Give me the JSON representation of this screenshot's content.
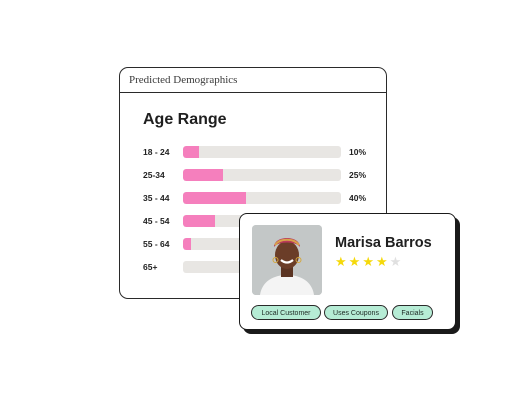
{
  "panel": {
    "header": "Predicted Demographics",
    "title": "Age Range",
    "rows": [
      {
        "label": "18 - 24",
        "fill": 0.1,
        "value": "10%"
      },
      {
        "label": "25-34",
        "fill": 0.25,
        "value": "25%"
      },
      {
        "label": "35 - 44",
        "fill": 0.4,
        "value": "40%"
      },
      {
        "label": "45 - 54",
        "fill": 0.2,
        "value": ""
      },
      {
        "label": "55 - 64",
        "fill": 0.05,
        "value": ""
      },
      {
        "label": "65+",
        "fill": 0.0,
        "value": ""
      }
    ]
  },
  "customer": {
    "name": "Marisa Barros",
    "rating": 4,
    "rating_max": 5,
    "tags": [
      "Local Customer",
      "Uses Coupons",
      "Facials"
    ]
  },
  "colors": {
    "bar_fill": "#f57fbd",
    "bar_track": "#e8e6e3",
    "tag_bg": "#b6ecd5",
    "star": "#f5d90a"
  }
}
